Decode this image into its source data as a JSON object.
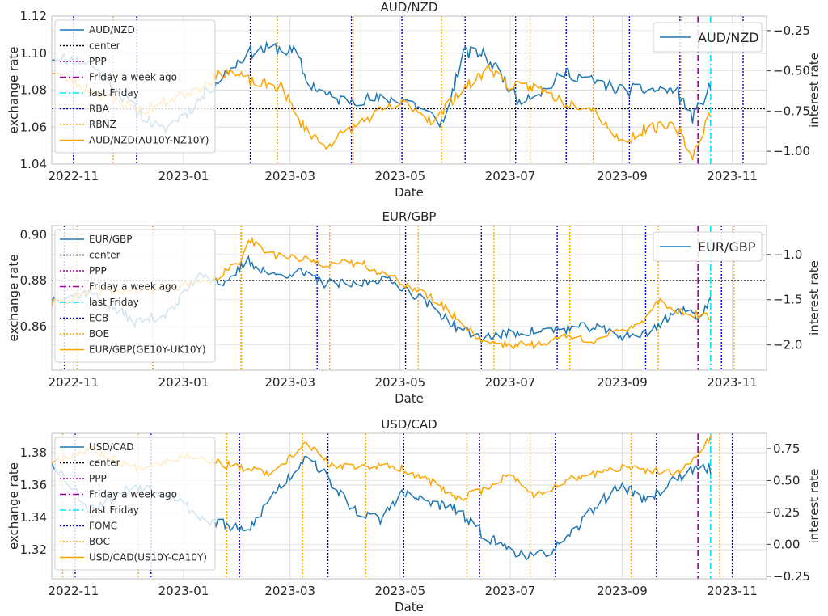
{
  "chart_data": [
    {
      "type": "line",
      "title": "AUD/NZD",
      "xlabel": "Date",
      "ylabel": "exchange rate",
      "y2label": "interest rate",
      "xlim": [
        "2022-10-20",
        "2023-11-20"
      ],
      "ylim": [
        1.04,
        1.12
      ],
      "y2lim": [
        -1.08,
        -0.16
      ],
      "xticks": [
        "2022-11",
        "2023-01",
        "2023-03",
        "2023-05",
        "2023-07",
        "2023-09",
        "2023-11"
      ],
      "yticks": [
        1.04,
        1.06,
        1.08,
        1.1,
        1.12
      ],
      "ytick_labels": [
        "1.04",
        "1.06",
        "1.08",
        "1.10",
        "1.12"
      ],
      "y2ticks": [
        -1.0,
        -0.75,
        -0.5,
        -0.25
      ],
      "y2tick_labels": [
        "−1.00",
        "−0.75",
        "−0.50",
        "−0.25"
      ],
      "grid": true,
      "center": 1.07,
      "legend_left": [
        "AUD/NZD",
        "center",
        "PPP",
        "Friday a week ago",
        "last Friday",
        "RBA",
        "RBNZ",
        "AUD/NZD(AU10Y-NZ10Y)"
      ],
      "legend_right": "AUD/NZD",
      "friday_week_ago": "2023-10-13",
      "last_friday": "2023-10-20",
      "bank1_dates": [
        "2022-11-01",
        "2022-12-06",
        "2023-02-07",
        "2023-04-04",
        "2023-05-02",
        "2023-06-06",
        "2023-07-04",
        "2023-08-01",
        "2023-09-05",
        "2023-10-03",
        "2023-11-07"
      ],
      "bank2_dates": [
        "2022-11-23",
        "2023-02-22",
        "2023-04-05",
        "2023-05-24",
        "2023-07-12",
        "2023-08-16",
        "2023-10-04"
      ],
      "series_fx": {
        "start": 1.098,
        "anchors": [
          [
            "2022-10-20",
            1.098
          ],
          [
            "2022-11-10",
            1.095
          ],
          [
            "2022-12-05",
            1.07
          ],
          [
            "2022-12-20",
            1.058
          ],
          [
            "2023-01-05",
            1.07
          ],
          [
            "2023-01-20",
            1.085
          ],
          [
            "2023-02-05",
            1.1
          ],
          [
            "2023-02-20",
            1.103
          ],
          [
            "2023-03-05",
            1.1
          ],
          [
            "2023-03-10",
            1.085
          ],
          [
            "2023-03-25",
            1.075
          ],
          [
            "2023-04-05",
            1.075
          ],
          [
            "2023-04-20",
            1.075
          ],
          [
            "2023-05-05",
            1.075
          ],
          [
            "2023-05-20",
            1.065
          ],
          [
            "2023-05-25",
            1.062
          ],
          [
            "2023-06-05",
            1.1
          ],
          [
            "2023-06-15",
            1.1
          ],
          [
            "2023-06-25",
            1.09
          ],
          [
            "2023-07-05",
            1.075
          ],
          [
            "2023-07-20",
            1.08
          ],
          [
            "2023-08-01",
            1.09
          ],
          [
            "2023-08-15",
            1.085
          ],
          [
            "2023-09-01",
            1.08
          ],
          [
            "2023-09-15",
            1.08
          ],
          [
            "2023-10-01",
            1.08
          ],
          [
            "2023-10-10",
            1.065
          ],
          [
            "2023-10-20",
            1.082
          ]
        ]
      },
      "series_rate": {
        "anchors": [
          [
            "2022-10-20",
            -0.5
          ],
          [
            "2022-11-10",
            -0.62
          ],
          [
            "2022-12-10",
            -0.75
          ],
          [
            "2023-01-10",
            -0.6
          ],
          [
            "2023-01-25",
            -0.5
          ],
          [
            "2023-02-10",
            -0.58
          ],
          [
            "2023-02-25",
            -0.6
          ],
          [
            "2023-03-05",
            -0.8
          ],
          [
            "2023-03-20",
            -0.97
          ],
          [
            "2023-04-05",
            -0.85
          ],
          [
            "2023-04-20",
            -0.75
          ],
          [
            "2023-05-05",
            -0.7
          ],
          [
            "2023-05-20",
            -0.82
          ],
          [
            "2023-06-01",
            -0.65
          ],
          [
            "2023-06-20",
            -0.48
          ],
          [
            "2023-07-01",
            -0.6
          ],
          [
            "2023-07-15",
            -0.6
          ],
          [
            "2023-08-01",
            -0.7
          ],
          [
            "2023-08-15",
            -0.72
          ],
          [
            "2023-09-01",
            -0.95
          ],
          [
            "2023-09-15",
            -0.85
          ],
          [
            "2023-10-01",
            -0.85
          ],
          [
            "2023-10-10",
            -1.03
          ],
          [
            "2023-10-20",
            -0.75
          ]
        ]
      }
    },
    {
      "type": "line",
      "title": "EUR/GBP",
      "xlabel": "Date",
      "ylabel": "exchange rate",
      "y2label": "interest rate",
      "xlim": [
        "2022-10-20",
        "2023-11-20"
      ],
      "ylim": [
        0.841,
        0.904
      ],
      "y2lim": [
        -2.28,
        -0.68
      ],
      "xticks": [
        "2022-11",
        "2023-01",
        "2023-03",
        "2023-05",
        "2023-07",
        "2023-09",
        "2023-11"
      ],
      "yticks": [
        0.86,
        0.88,
        0.9
      ],
      "ytick_labels": [
        "0.86",
        "0.88",
        "0.90"
      ],
      "y2ticks": [
        -2.0,
        -1.5,
        -1.0
      ],
      "y2tick_labels": [
        "−2.0",
        "−1.5",
        "−1.0"
      ],
      "grid": true,
      "center": 0.88,
      "legend_left": [
        "EUR/GBP",
        "center",
        "PPP",
        "Friday a week ago",
        "last Friday",
        "ECB",
        "BOE",
        "EUR/GBP(GE10Y-UK10Y)"
      ],
      "legend_right": "EUR/GBP",
      "friday_week_ago": "2023-10-13",
      "last_friday": "2023-10-20",
      "bank1_dates": [
        "2022-10-27",
        "2022-12-15",
        "2023-02-02",
        "2023-03-16",
        "2023-05-04",
        "2023-06-15",
        "2023-07-27",
        "2023-09-14",
        "2023-10-26"
      ],
      "bank2_dates": [
        "2022-11-03",
        "2022-12-15",
        "2023-02-02",
        "2023-03-23",
        "2023-05-11",
        "2023-06-22",
        "2023-08-03",
        "2023-09-21",
        "2023-11-02"
      ],
      "series_fx": {
        "anchors": [
          [
            "2022-10-20",
            0.872
          ],
          [
            "2022-11-10",
            0.875
          ],
          [
            "2022-12-05",
            0.862
          ],
          [
            "2022-12-25",
            0.866
          ],
          [
            "2023-01-10",
            0.884
          ],
          [
            "2023-01-25",
            0.878
          ],
          [
            "2023-02-05",
            0.889
          ],
          [
            "2023-02-20",
            0.882
          ],
          [
            "2023-03-05",
            0.884
          ],
          [
            "2023-03-20",
            0.879
          ],
          [
            "2023-04-05",
            0.878
          ],
          [
            "2023-04-20",
            0.881
          ],
          [
            "2023-05-01",
            0.878
          ],
          [
            "2023-05-15",
            0.871
          ],
          [
            "2023-06-01",
            0.86
          ],
          [
            "2023-06-15",
            0.855
          ],
          [
            "2023-07-01",
            0.857
          ],
          [
            "2023-07-15",
            0.858
          ],
          [
            "2023-08-01",
            0.859
          ],
          [
            "2023-08-15",
            0.86
          ],
          [
            "2023-09-01",
            0.856
          ],
          [
            "2023-09-15",
            0.857
          ],
          [
            "2023-10-01",
            0.867
          ],
          [
            "2023-10-15",
            0.865
          ],
          [
            "2023-10-20",
            0.872
          ]
        ]
      },
      "series_rate": {
        "anchors": [
          [
            "2022-10-20",
            -1.55
          ],
          [
            "2022-11-15",
            -1.4
          ],
          [
            "2022-12-15",
            -1.4
          ],
          [
            "2023-01-15",
            -1.3
          ],
          [
            "2023-02-01",
            -1.1
          ],
          [
            "2023-02-05",
            -0.82
          ],
          [
            "2023-02-20",
            -1.0
          ],
          [
            "2023-03-20",
            -1.1
          ],
          [
            "2023-04-10",
            -1.1
          ],
          [
            "2023-05-01",
            -1.3
          ],
          [
            "2023-05-20",
            -1.5
          ],
          [
            "2023-06-01",
            -1.7
          ],
          [
            "2023-06-15",
            -1.95
          ],
          [
            "2023-07-01",
            -2.0
          ],
          [
            "2023-07-15",
            -2.0
          ],
          [
            "2023-08-01",
            -1.9
          ],
          [
            "2023-08-15",
            -1.95
          ],
          [
            "2023-09-01",
            -1.85
          ],
          [
            "2023-09-15",
            -1.7
          ],
          [
            "2023-09-20",
            -1.5
          ],
          [
            "2023-10-05",
            -1.65
          ],
          [
            "2023-10-20",
            -1.7
          ]
        ]
      }
    },
    {
      "type": "line",
      "title": "USD/CAD",
      "xlabel": "Date",
      "ylabel": "exchange rate",
      "y2label": "interest rate",
      "xlim": [
        "2022-10-20",
        "2023-11-20"
      ],
      "ylim": [
        1.302,
        1.392
      ],
      "y2lim": [
        -0.27,
        0.87
      ],
      "xticks": [
        "2022-11",
        "2023-01",
        "2023-03",
        "2023-05",
        "2023-07",
        "2023-09",
        "2023-11"
      ],
      "yticks": [
        1.32,
        1.34,
        1.36,
        1.38
      ],
      "ytick_labels": [
        "1.32",
        "1.34",
        "1.36",
        "1.38"
      ],
      "y2ticks": [
        -0.25,
        0.0,
        0.25,
        0.5,
        0.75
      ],
      "y2tick_labels": [
        "−0.25",
        "0.00",
        "0.25",
        "0.50",
        "0.75"
      ],
      "grid": true,
      "center": null,
      "legend_left": [
        "USD/CAD",
        "center",
        "PPP",
        "Friday a week ago",
        "last Friday",
        "FOMC",
        "BOC",
        "USD/CAD(US10Y-CA10Y)"
      ],
      "legend_right": "",
      "friday_week_ago": "2023-10-13",
      "last_friday": "2023-10-20",
      "bank1_dates": [
        "2022-11-02",
        "2022-12-14",
        "2023-02-01",
        "2023-03-22",
        "2023-05-03",
        "2023-06-14",
        "2023-07-26",
        "2023-09-20",
        "2023-11-01"
      ],
      "bank2_dates": [
        "2022-10-26",
        "2022-12-07",
        "2023-01-25",
        "2023-03-08",
        "2023-04-12",
        "2023-06-07",
        "2023-07-12",
        "2023-09-06",
        "2023-10-25"
      ],
      "series_fx": {
        "anchors": [
          [
            "2022-10-20",
            1.375
          ],
          [
            "2022-11-10",
            1.345
          ],
          [
            "2022-12-05",
            1.36
          ],
          [
            "2022-12-25",
            1.355
          ],
          [
            "2023-01-10",
            1.34
          ],
          [
            "2023-01-25",
            1.335
          ],
          [
            "2023-02-05",
            1.33
          ],
          [
            "2023-02-20",
            1.355
          ],
          [
            "2023-03-05",
            1.37
          ],
          [
            "2023-03-10",
            1.38
          ],
          [
            "2023-03-25",
            1.36
          ],
          [
            "2023-04-05",
            1.345
          ],
          [
            "2023-04-20",
            1.338
          ],
          [
            "2023-05-01",
            1.355
          ],
          [
            "2023-05-15",
            1.35
          ],
          [
            "2023-06-01",
            1.345
          ],
          [
            "2023-06-15",
            1.33
          ],
          [
            "2023-07-01",
            1.32
          ],
          [
            "2023-07-15",
            1.315
          ],
          [
            "2023-08-01",
            1.325
          ],
          [
            "2023-08-15",
            1.345
          ],
          [
            "2023-09-01",
            1.36
          ],
          [
            "2023-09-15",
            1.35
          ],
          [
            "2023-10-01",
            1.365
          ],
          [
            "2023-10-15",
            1.37
          ],
          [
            "2023-10-20",
            1.37
          ]
        ]
      },
      "series_rate": {
        "anchors": [
          [
            "2022-10-20",
            0.65
          ],
          [
            "2022-11-10",
            0.75
          ],
          [
            "2022-12-05",
            0.6
          ],
          [
            "2023-01-05",
            0.7
          ],
          [
            "2023-01-25",
            0.62
          ],
          [
            "2023-02-20",
            0.55
          ],
          [
            "2023-03-10",
            0.8
          ],
          [
            "2023-03-25",
            0.6
          ],
          [
            "2023-04-10",
            0.62
          ],
          [
            "2023-05-01",
            0.6
          ],
          [
            "2023-05-20",
            0.48
          ],
          [
            "2023-06-01",
            0.35
          ],
          [
            "2023-06-15",
            0.42
          ],
          [
            "2023-07-01",
            0.55
          ],
          [
            "2023-07-15",
            0.38
          ],
          [
            "2023-08-01",
            0.5
          ],
          [
            "2023-08-15",
            0.55
          ],
          [
            "2023-09-01",
            0.6
          ],
          [
            "2023-09-15",
            0.58
          ],
          [
            "2023-10-01",
            0.55
          ],
          [
            "2023-10-10",
            0.65
          ],
          [
            "2023-10-20",
            0.85
          ]
        ]
      }
    }
  ]
}
